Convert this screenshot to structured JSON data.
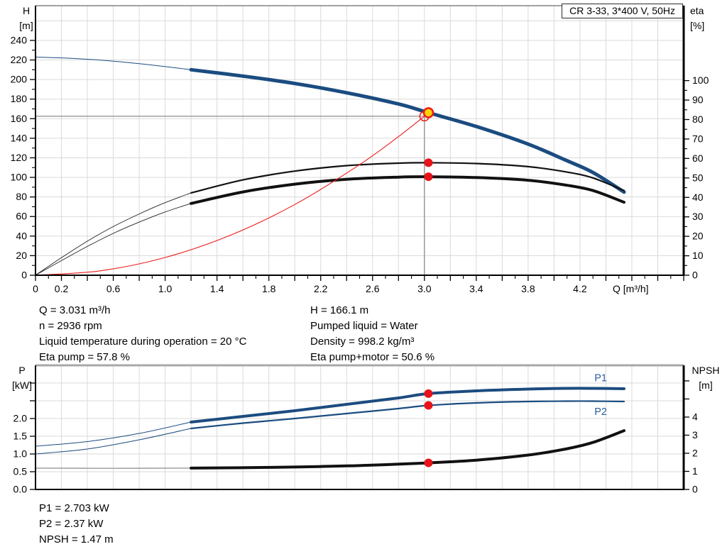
{
  "title_box": "CR 3-33, 3*400 V, 50Hz",
  "colors": {
    "curve_blue": "#1b4c80",
    "curve_black": "#111111",
    "curve_red": "#ee1c1c",
    "marker_red": "#e8131a",
    "marker_yellow": "#ffd400",
    "ref_gray": "#8c8c8c",
    "grid_gray": "#dadada",
    "npsh_ext_gray": "#9a9a9a",
    "label_blue": "#2b5d9f"
  },
  "chart_data": [
    {
      "type": "line",
      "name": "qh-eta-chart",
      "title": "CR 3-33, 3*400 V, 50Hz",
      "x_axis": {
        "min": 0,
        "max": 5,
        "tick_step": 0.2,
        "minor_step": 0.1,
        "unit_label": "Q [m³/h]",
        "labels": [
          "0",
          "0.2",
          "0.6",
          "1.0",
          "1.4",
          "1.8",
          "2.2",
          "2.6",
          "3.0",
          "3.4",
          "3.8",
          "4.2"
        ],
        "label_values": [
          0,
          0.2,
          0.6,
          1.0,
          1.4,
          1.8,
          2.2,
          2.6,
          3.0,
          3.4,
          3.8,
          4.2
        ]
      },
      "y_left": {
        "title": "H",
        "unit": "[m]",
        "min": 0,
        "max": 275.5,
        "tick_step": 20,
        "tick_max": 240,
        "minor_step": 10,
        "labels": [
          "0",
          "20",
          "40",
          "60",
          "80",
          "100",
          "120",
          "140",
          "160",
          "180",
          "200",
          "220",
          "240"
        ]
      },
      "y_right": {
        "title": "eta",
        "unit": "[%]",
        "min": 0,
        "max": 138.5,
        "tick_step": 10,
        "tick_max": 100,
        "minor_step": 5,
        "labels": [
          "0",
          "10",
          "20",
          "30",
          "40",
          "50",
          "60",
          "70",
          "80",
          "90",
          "100"
        ]
      },
      "grid": {
        "x_step": 0.2,
        "y_step": 20,
        "y_max": 260
      },
      "crosshair": {
        "q": 3.0,
        "h": 162.5
      },
      "series": [
        {
          "name": "h-curve-thin",
          "axis": "left",
          "color": "#1b4c80",
          "width": 1,
          "points": [
            [
              0,
              223
            ],
            [
              0.3,
              221.5
            ],
            [
              0.6,
              218.8
            ],
            [
              0.9,
              214.8
            ],
            [
              1.2,
              210
            ]
          ]
        },
        {
          "name": "h-curve",
          "axis": "left",
          "color": "#1b4c80",
          "width": 5,
          "points": [
            [
              1.2,
              210
            ],
            [
              1.6,
              203.5
            ],
            [
              2.0,
              196
            ],
            [
              2.4,
              186.5
            ],
            [
              2.8,
              175
            ],
            [
              3.031,
              166.1
            ],
            [
              3.4,
              152
            ],
            [
              3.8,
              134
            ],
            [
              4.1,
              117
            ],
            [
              4.3,
              105
            ],
            [
              4.54,
              85
            ]
          ]
        },
        {
          "name": "eta-pump-ext",
          "axis": "right",
          "color": "#222222",
          "width": 0.9,
          "points": [
            [
              0,
              0
            ],
            [
              0.2,
              9
            ],
            [
              0.4,
              17.5
            ],
            [
              0.6,
              25
            ],
            [
              0.8,
              31.5
            ],
            [
              1.0,
              37.3
            ],
            [
              1.2,
              42.3
            ]
          ]
        },
        {
          "name": "eta-pump",
          "axis": "right",
          "color": "#111111",
          "width": 2.2,
          "points": [
            [
              1.2,
              42.3
            ],
            [
              1.6,
              49
            ],
            [
              2.0,
              53.5
            ],
            [
              2.4,
              56.3
            ],
            [
              2.8,
              57.6
            ],
            [
              3.031,
              57.8
            ],
            [
              3.4,
              57.4
            ],
            [
              3.8,
              55.8
            ],
            [
              4.1,
              53
            ],
            [
              4.3,
              50
            ],
            [
              4.54,
              43.5
            ]
          ]
        },
        {
          "name": "eta-pump-motor-ext",
          "axis": "right",
          "color": "#222222",
          "width": 0.9,
          "points": [
            [
              0,
              0
            ],
            [
              0.2,
              7.5
            ],
            [
              0.4,
              14.8
            ],
            [
              0.6,
              21.5
            ],
            [
              0.8,
              27.3
            ],
            [
              1.0,
              32.5
            ],
            [
              1.2,
              36.9
            ]
          ]
        },
        {
          "name": "eta-pump-motor",
          "axis": "right",
          "color": "#111111",
          "width": 4,
          "points": [
            [
              1.2,
              36.9
            ],
            [
              1.6,
              42.8
            ],
            [
              2.0,
              46.8
            ],
            [
              2.4,
              49.3
            ],
            [
              2.8,
              50.4
            ],
            [
              3.031,
              50.6
            ],
            [
              3.4,
              50.2
            ],
            [
              3.8,
              48.8
            ],
            [
              4.1,
              46.2
            ],
            [
              4.3,
              43.5
            ],
            [
              4.54,
              37.5
            ]
          ]
        },
        {
          "name": "system-curve",
          "axis": "left",
          "color": "#ee1c1c",
          "width": 1.1,
          "points": [
            [
              0,
              0
            ],
            [
              0.5,
              4.5
            ],
            [
              1.0,
              18.1
            ],
            [
              1.5,
              40.7
            ],
            [
              2.0,
              72.3
            ],
            [
              2.5,
              113
            ],
            [
              2.8,
              141.7
            ],
            [
              3.0,
              162.5
            ]
          ]
        }
      ],
      "series_labels": [],
      "markers": [
        {
          "name": "requested-duty-point",
          "q": 3.0,
          "v": 162.5,
          "axis": "left",
          "r": 6.5,
          "stroke": "#ee1c1c",
          "fill": "none",
          "sw": 1.6
        },
        {
          "name": "duty-point",
          "q": 3.031,
          "v": 166.1,
          "axis": "left",
          "r": 6.5,
          "stroke": "#ee1c1c",
          "fill": "#ffd400",
          "sw": 2.6
        },
        {
          "name": "eta-pump-point",
          "q": 3.031,
          "v": 57.8,
          "axis": "right",
          "r": 6,
          "stroke": "none",
          "fill": "#e8131a",
          "sw": 0
        },
        {
          "name": "eta-pump-motor-point",
          "q": 3.031,
          "v": 50.6,
          "axis": "right",
          "r": 6,
          "stroke": "none",
          "fill": "#e8131a",
          "sw": 0
        }
      ]
    },
    {
      "type": "line",
      "name": "power-npsh-chart",
      "title": "",
      "x_axis": {
        "min": 0,
        "max": 5,
        "tick_step": 0,
        "minor_step": 0,
        "unit_label": "",
        "labels": [],
        "label_values": []
      },
      "y_left": {
        "title": "P",
        "unit": "[kW]",
        "min": 0,
        "max": 3.5,
        "tick_step": 0.5,
        "tick_max": 3.0,
        "minor_step": 0,
        "labels": [
          "0.0",
          "0.5",
          "1.0",
          "1.5",
          "2.0"
        ]
      },
      "y_right": {
        "title": "NPSH",
        "unit": "[m]",
        "min": 0,
        "max": 6.86,
        "tick_step": 1,
        "tick_max": 6,
        "minor_step": 0,
        "labels": [
          "0",
          "1",
          "2",
          "3",
          "4"
        ]
      },
      "grid": {
        "x_step": 0.2,
        "y_step": 0.5,
        "y_max": 3.0
      },
      "crosshair": null,
      "series": [
        {
          "name": "p1-ext",
          "axis": "left",
          "color": "#1b4c80",
          "width": 1,
          "points": [
            [
              0,
              1.22
            ],
            [
              0.4,
              1.35
            ],
            [
              0.8,
              1.58
            ],
            [
              1.2,
              1.9
            ]
          ]
        },
        {
          "name": "p1-curve",
          "axis": "left",
          "color": "#1b4c80",
          "width": 4,
          "points": [
            [
              1.2,
              1.9
            ],
            [
              1.6,
              2.06
            ],
            [
              2.0,
              2.22
            ],
            [
              2.4,
              2.4
            ],
            [
              2.8,
              2.58
            ],
            [
              3.031,
              2.703
            ],
            [
              3.4,
              2.78
            ],
            [
              3.8,
              2.83
            ],
            [
              4.1,
              2.85
            ],
            [
              4.3,
              2.85
            ],
            [
              4.54,
              2.84
            ]
          ]
        },
        {
          "name": "p2-ext",
          "axis": "left",
          "color": "#1b4c80",
          "width": 1,
          "points": [
            [
              0,
              1.0
            ],
            [
              0.4,
              1.14
            ],
            [
              0.8,
              1.4
            ],
            [
              1.2,
              1.72
            ]
          ]
        },
        {
          "name": "p2-curve",
          "axis": "left",
          "color": "#1b4c80",
          "width": 2.2,
          "points": [
            [
              1.2,
              1.72
            ],
            [
              1.6,
              1.87
            ],
            [
              2.0,
              2.0
            ],
            [
              2.4,
              2.14
            ],
            [
              2.8,
              2.28
            ],
            [
              3.031,
              2.37
            ],
            [
              3.4,
              2.44
            ],
            [
              3.8,
              2.48
            ],
            [
              4.1,
              2.49
            ],
            [
              4.3,
              2.49
            ],
            [
              4.54,
              2.48
            ]
          ]
        },
        {
          "name": "npsh-ext",
          "axis": "right",
          "color": "#9a9a9a",
          "width": 1.4,
          "points": [
            [
              0,
              1.18
            ],
            [
              0.6,
              1.17
            ],
            [
              1.2,
              1.18
            ]
          ]
        },
        {
          "name": "npsh-curve",
          "axis": "right",
          "color": "#111111",
          "width": 4,
          "points": [
            [
              1.2,
              1.18
            ],
            [
              1.8,
              1.22
            ],
            [
              2.4,
              1.3
            ],
            [
              3.031,
              1.47
            ],
            [
              3.4,
              1.62
            ],
            [
              3.8,
              1.9
            ],
            [
              4.1,
              2.25
            ],
            [
              4.3,
              2.6
            ],
            [
              4.54,
              3.25
            ]
          ]
        }
      ],
      "series_labels": [
        {
          "text": "P1",
          "q": 4.36,
          "v": 3.05,
          "axis": "left",
          "color": "#2b5d9f"
        },
        {
          "text": "P2",
          "q": 4.36,
          "v": 2.1,
          "axis": "left",
          "color": "#2b5d9f"
        }
      ],
      "markers": [
        {
          "name": "p1-point",
          "q": 3.031,
          "v": 2.703,
          "axis": "left",
          "r": 6,
          "stroke": "none",
          "fill": "#e8131a",
          "sw": 0
        },
        {
          "name": "p2-point",
          "q": 3.031,
          "v": 2.37,
          "axis": "left",
          "r": 6,
          "stroke": "none",
          "fill": "#e8131a",
          "sw": 0
        },
        {
          "name": "npsh-point",
          "q": 3.031,
          "v": 1.47,
          "axis": "right",
          "r": 6,
          "stroke": "none",
          "fill": "#e8131a",
          "sw": 0
        }
      ]
    }
  ],
  "info_top": {
    "left": [
      "Q = 3.031 m³/h",
      "n = 2936 rpm",
      "Liquid temperature during operation = 20 °C",
      "Eta pump = 57.8 %"
    ],
    "right": [
      "H = 166.1 m",
      "Pumped liquid = Water",
      "Density = 998.2 kg/m³",
      "Eta pump+motor = 50.6 %"
    ]
  },
  "info_bottom": [
    "P1 = 2.703 kW",
    "P2 = 2.37 kW",
    "NPSH = 1.47 m"
  ]
}
